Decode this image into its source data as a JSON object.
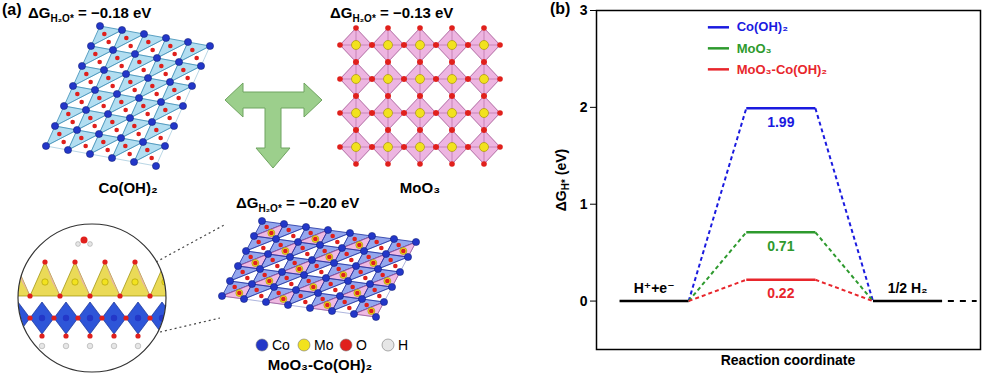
{
  "panel_a": {
    "label": "(a)",
    "structures": [
      {
        "name": "Co(OH)₂",
        "delta_g": {
          "text": "ΔG",
          "subscript": "H₂O*",
          "after": " = −0.18 eV"
        }
      },
      {
        "name": "MoO₃",
        "delta_g": {
          "text": "ΔG",
          "subscript": "H₂O*",
          "after": " = −0.13 eV"
        }
      },
      {
        "name": "MoO₃-Co(OH)₂",
        "delta_g": {
          "text": "ΔG",
          "subscript": "H₂O*",
          "after": " = −0.20 eV"
        }
      }
    ],
    "atoms": [
      {
        "label": "Co",
        "color": "#2337c8"
      },
      {
        "label": "Mo",
        "color": "#f2e21e"
      },
      {
        "label": "O",
        "color": "#e0201c"
      },
      {
        "label": "H",
        "color": "#e6e6e6"
      }
    ]
  },
  "chart_data": {
    "type": "line",
    "panel_label": "(b)",
    "ylabel": {
      "text": "ΔG",
      "subscript": "H*",
      "after": " (eV)"
    },
    "xlabel": "Reaction coordinate",
    "categories": [
      "H⁺+e⁻",
      null,
      "1/2 H₂"
    ],
    "series": [
      {
        "name": "Co(OH)₂",
        "color": "#1a1adf",
        "values": [
          0,
          1.99,
          0
        ]
      },
      {
        "name": "MoO₃",
        "color": "#2e9a2e",
        "values": [
          0,
          0.71,
          0
        ]
      },
      {
        "name": "MoO₃-Co(OH)₂",
        "color": "#e8262c",
        "values": [
          0,
          0.22,
          0
        ]
      }
    ],
    "ylim": [
      -0.5,
      3
    ],
    "yticks": [
      0,
      1,
      2,
      3
    ],
    "tick_labels": "y",
    "data_labels": true,
    "legend": "top",
    "line_style": "dashed"
  }
}
